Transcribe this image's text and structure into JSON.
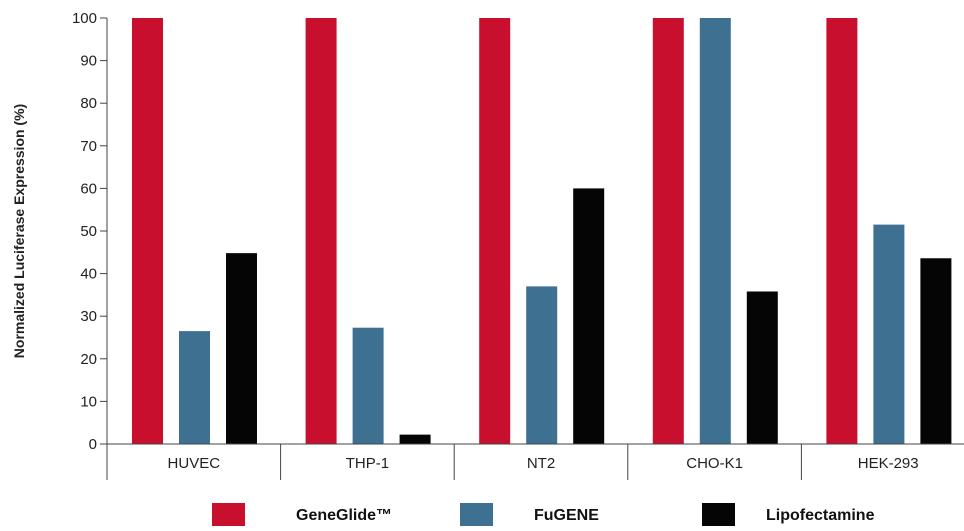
{
  "chart_data": {
    "type": "bar",
    "title": "",
    "xlabel": "",
    "ylabel": "Normalized Luciferase Expression (%)",
    "categories": [
      "HUVEC",
      "THP-1",
      "NT2",
      "CHO-K1",
      "HEK-293"
    ],
    "series": [
      {
        "name": "GeneGlide™",
        "color": "#c8102e",
        "values": [
          100,
          100,
          100,
          100,
          100
        ]
      },
      {
        "name": "FuGENE",
        "color": "#3e7092",
        "values": [
          26.5,
          27.3,
          37,
          100,
          51.5
        ]
      },
      {
        "name": "Lipofectamine",
        "color": "#050505",
        "values": [
          44.8,
          2.2,
          60,
          35.8,
          43.6
        ]
      }
    ],
    "ylim": [
      0,
      100
    ],
    "yticks": [
      0,
      10,
      20,
      30,
      40,
      50,
      60,
      70,
      80,
      90,
      100
    ],
    "grid": false,
    "legend_position": "bottom"
  }
}
